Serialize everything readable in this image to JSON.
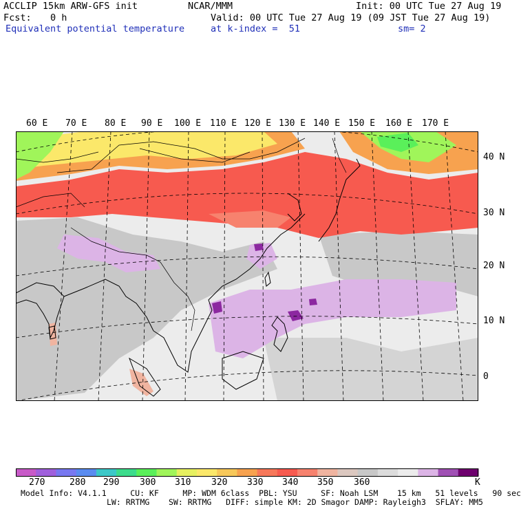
{
  "header": {
    "line1_left": "ACCLIP 15km ARW-GFS init",
    "line1_center": "NCAR/MMM",
    "line1_right": "Init: 00 UTC Tue 27 Aug 19",
    "fcst_label": "Fcst:",
    "fcst_value": "0 h",
    "valid": "Valid: 00 UTC Tue 27 Aug 19 (09 JST Tue 27 Aug 19)",
    "field": "Equivalent potential temperature",
    "level": "at k-index =  51",
    "smoothing": "sm= 2"
  },
  "map": {
    "lon_labels": [
      "60 E",
      "70 E",
      "80 E",
      "90 E",
      "100 E",
      "110 E",
      "120 E",
      "130 E",
      "140 E",
      "150 E",
      "160 E",
      "170 E"
    ],
    "lat_labels": [
      "40 N",
      "30 N",
      "20 N",
      "10 N",
      "0"
    ],
    "colors": {
      "land_gray": "#c8c8c8",
      "ocean_light": "#ececec",
      "warm_band": "#f7614f",
      "orange": "#f7a24f",
      "yellow": "#fbe86a",
      "green": "#7dfa60",
      "lavender": "#dcb4e6",
      "purple": "#8c28a0"
    }
  },
  "colorbar": {
    "ticks": [
      "270",
      "280",
      "290",
      "300",
      "310",
      "320",
      "330",
      "340",
      "350",
      "360"
    ],
    "unit": "K",
    "colors": [
      "#c85ac8",
      "#a060dc",
      "#7878f0",
      "#5a8cf0",
      "#3cc8c8",
      "#3cdc8c",
      "#5af05a",
      "#a0f55a",
      "#e6f060",
      "#fbe86a",
      "#f7c85a",
      "#f7a24f",
      "#f7785a",
      "#f75a4f",
      "#f7826e",
      "#f0b4a0",
      "#dcc8c0",
      "#c8c8c8",
      "#dcdcdc",
      "#ececec",
      "#dcb4e6",
      "#a050b4",
      "#6e006e"
    ]
  },
  "footer": {
    "line1": "Model Info: V4.1.1     CU: KF     MP: WDM 6class  PBL: YSU     SF: Noah LSM    15 km   51 levels   90 sec",
    "line2": "LW: RRTMG    SW: RRTMG   DIFF: simple KM: 2D Smagor DAMP: Rayleigh3  SFLAY: MM5"
  }
}
